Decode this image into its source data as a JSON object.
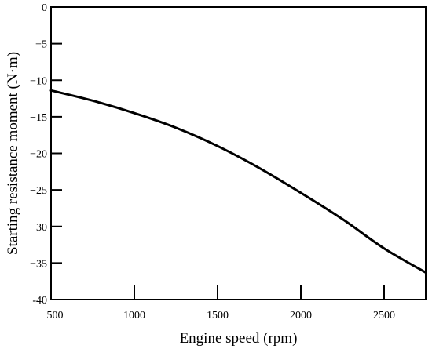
{
  "chart_data": {
    "type": "line",
    "xlabel": "Engine speed (rpm)",
    "ylabel": "Starting resistance moment (N·m)",
    "xlim": [
      500,
      2750
    ],
    "ylim": [
      -40,
      0
    ],
    "x_ticks": [
      500,
      1000,
      1500,
      2000,
      2500
    ],
    "x_tick_labels": [
      "500",
      "1000",
      "1500",
      "2000",
      "2500"
    ],
    "y_ticks": [
      0,
      -5,
      -10,
      -15,
      -20,
      -25,
      -30,
      -35,
      -40
    ],
    "y_tick_labels": [
      "0",
      "−5",
      "−10",
      "−15",
      "−20",
      "−25",
      "−30",
      "−35",
      "-40"
    ],
    "grid": false,
    "series": [
      {
        "x": [
          500,
          750,
          1000,
          1250,
          1500,
          1750,
          2000,
          2250,
          2500,
          2750
        ],
        "y": [
          -11.4,
          -12.8,
          -14.5,
          -16.5,
          -19.0,
          -22.0,
          -25.4,
          -29.0,
          -33.0,
          -36.3
        ],
        "color": "#000000"
      }
    ]
  }
}
